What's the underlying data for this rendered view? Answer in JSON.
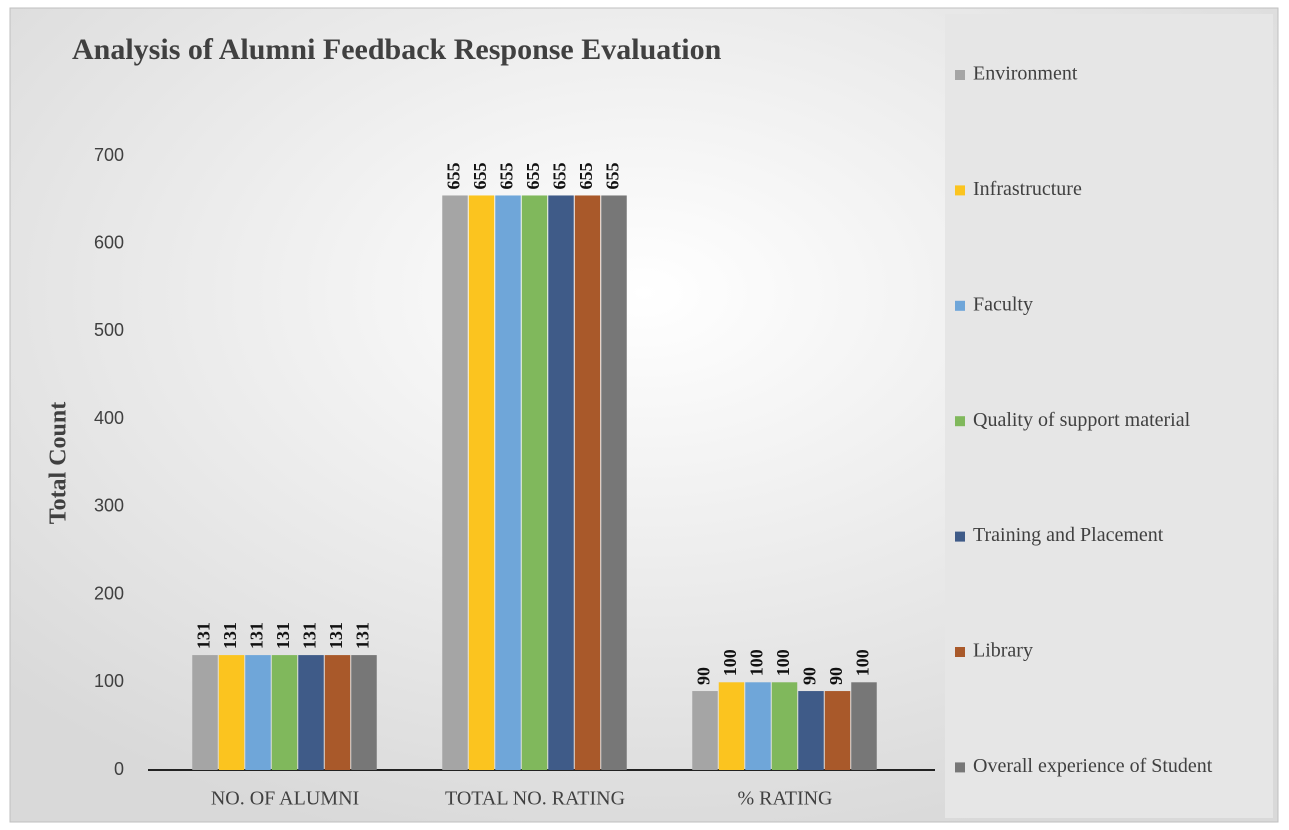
{
  "chart_data": {
    "type": "bar",
    "title": "Analysis of Alumni Feedback Response Evaluation",
    "y_label": "Total Count",
    "categories": [
      "NO. OF ALUMNI",
      "TOTAL NO. RATING",
      "% RATING"
    ],
    "series": [
      {
        "name": "Environment",
        "color": "#a5a5a5",
        "values": [
          131,
          655,
          90
        ]
      },
      {
        "name": "Infrastructure",
        "color": "#fbc41f",
        "values": [
          131,
          655,
          100
        ]
      },
      {
        "name": "Faculty",
        "color": "#6fa6d9",
        "values": [
          131,
          655,
          100
        ]
      },
      {
        "name": "Quality of support material",
        "color": "#80b85c",
        "values": [
          131,
          655,
          100
        ]
      },
      {
        "name": "Training and Placement",
        "color": "#3f5b88",
        "values": [
          131,
          655,
          90
        ]
      },
      {
        "name": "Library",
        "color": "#a9592a",
        "values": [
          131,
          655,
          90
        ]
      },
      {
        "name": "Overall experience of Student",
        "color": "#777777",
        "values": [
          131,
          655,
          100
        ]
      }
    ],
    "ylim": [
      0,
      700
    ],
    "yticks": [
      0,
      100,
      200,
      300,
      400,
      500,
      600,
      700
    ],
    "grid": false,
    "legend": "right"
  }
}
